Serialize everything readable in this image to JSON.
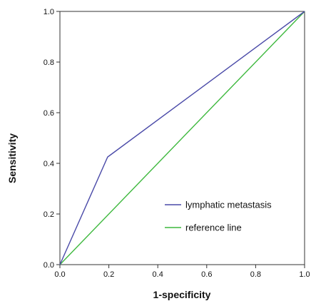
{
  "chart_data": {
    "type": "line",
    "title": "",
    "xlabel": "1-specificity",
    "ylabel": "Sensitivity",
    "xlim": [
      0.0,
      1.0
    ],
    "ylim": [
      0.0,
      1.0
    ],
    "x_ticks": [
      "0.0",
      "0.2",
      "0.4",
      "0.6",
      "0.8",
      "1.0"
    ],
    "y_ticks": [
      "0.0",
      "0.2",
      "0.4",
      "0.6",
      "0.8",
      "1.0"
    ],
    "grid": false,
    "legend_position": "bottom-right",
    "series": [
      {
        "name": "lymphatic metastasis",
        "color": "#4a4aa8",
        "x": [
          0.0,
          0.195,
          1.0
        ],
        "y": [
          0.0,
          0.425,
          1.0
        ]
      },
      {
        "name": "reference line",
        "color": "#3db83d",
        "x": [
          0.0,
          1.0
        ],
        "y": [
          0.0,
          1.0
        ]
      }
    ]
  }
}
